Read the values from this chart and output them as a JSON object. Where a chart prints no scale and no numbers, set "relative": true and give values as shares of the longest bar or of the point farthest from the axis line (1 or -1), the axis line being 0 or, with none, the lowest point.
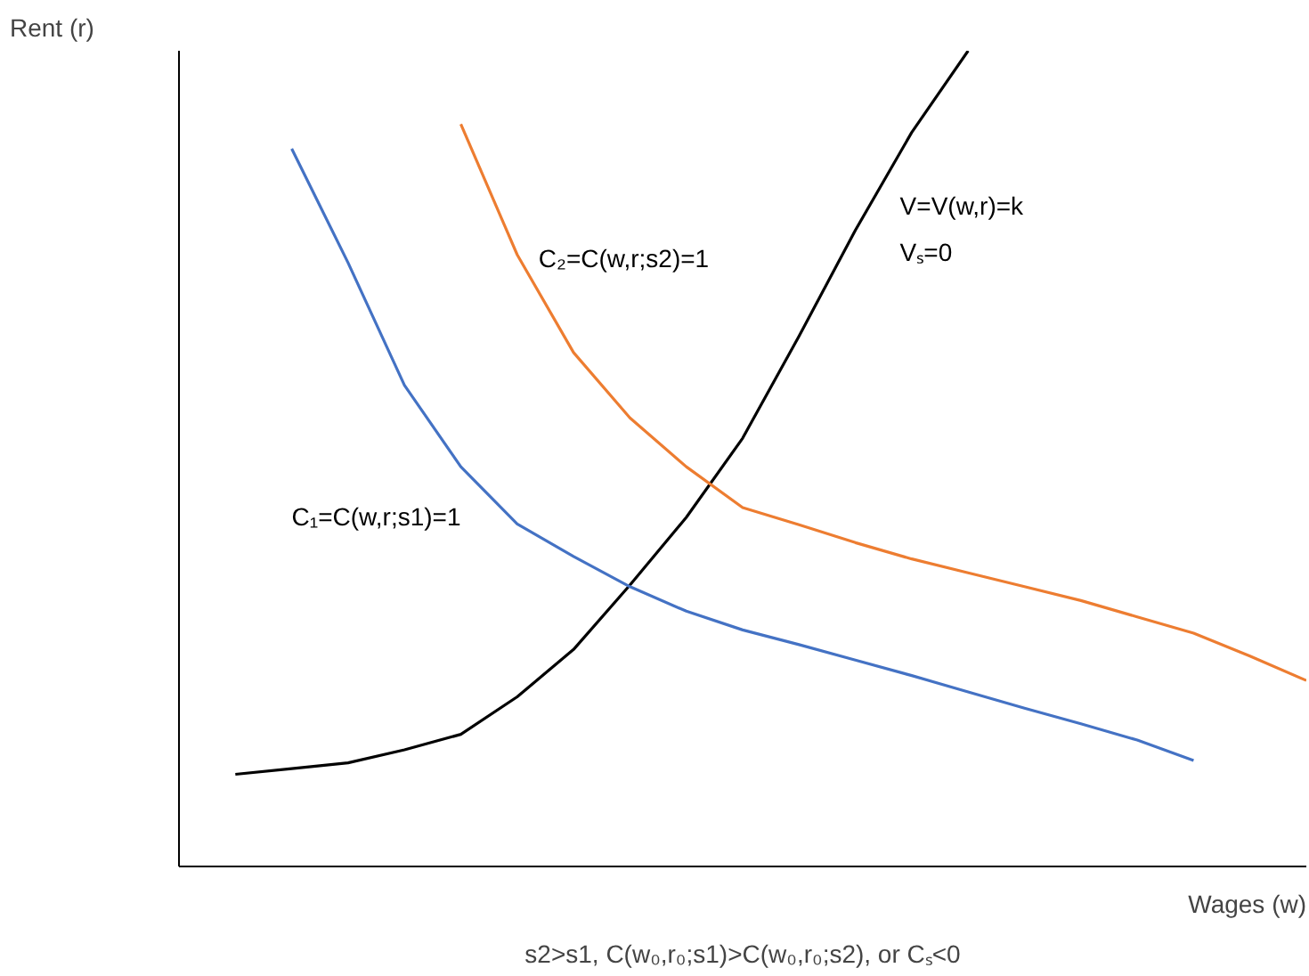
{
  "chart_data": {
    "type": "line",
    "relative": true,
    "xlabel": "Wages (w)",
    "ylabel": "Rent (r)",
    "categories": [
      null,
      null,
      null,
      null,
      null,
      null,
      null,
      null,
      null,
      null,
      null,
      null,
      null,
      null,
      null,
      null,
      null,
      null,
      null,
      null,
      null
    ],
    "series": [
      {
        "name": "V=V(w,r)=k\nVₛ=0",
        "color": "#000000",
        "values": [
          null,
          0.113,
          0.12,
          0.127,
          0.143,
          0.162,
          0.208,
          0.266,
          0.345,
          0.428,
          0.525,
          0.65,
          0.78,
          0.9,
          1.0,
          null,
          null,
          null,
          null,
          null,
          null
        ]
      },
      {
        "name": "C₁=C(w,r;s1)=1",
        "color": "#4472c4",
        "values": [
          null,
          null,
          0.88,
          0.74,
          0.59,
          0.49,
          0.42,
          0.38,
          0.343,
          0.313,
          0.29,
          0.272,
          0.253,
          0.234,
          0.214,
          0.194,
          0.175,
          0.155,
          0.13,
          null,
          null
        ]
      },
      {
        "name": "C₂=C(w,r;s2)=1",
        "color": "#ed7d31",
        "values": [
          null,
          null,
          null,
          null,
          null,
          0.91,
          0.75,
          0.63,
          0.55,
          0.49,
          0.44,
          0.419,
          0.397,
          0.377,
          0.36,
          0.343,
          0.326,
          0.306,
          0.286,
          0.258,
          0.228
        ]
      }
    ],
    "annotations": [
      "s2>s1, C(w₀,r₀;s1)>C(w₀,r₀;s2), or Cₛ<0"
    ]
  }
}
